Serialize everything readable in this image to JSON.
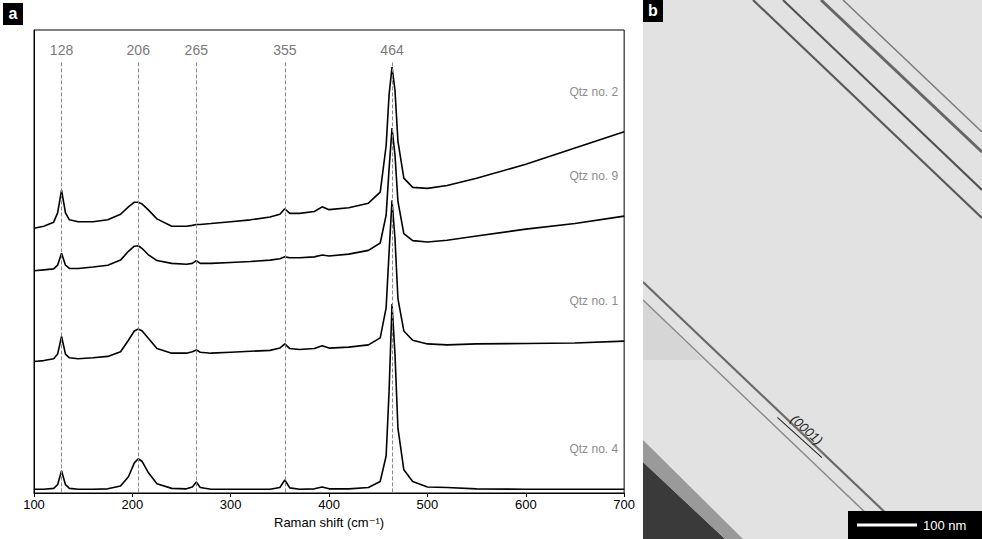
{
  "chart_data": {
    "type": "line",
    "panel": "a",
    "xlabel": "Raman shift (cm⁻¹)",
    "x": [
      100,
      110,
      120,
      124,
      128,
      132,
      136,
      145,
      160,
      175,
      188,
      196,
      202,
      206,
      210,
      216,
      225,
      240,
      255,
      261,
      265,
      269,
      280,
      300,
      320,
      340,
      350,
      355,
      360,
      370,
      385,
      393,
      400,
      420,
      440,
      452,
      458,
      461,
      464,
      467,
      470,
      476,
      485,
      500,
      520,
      550,
      600,
      650,
      700
    ],
    "series": [
      {
        "name": "Qtz no. 2",
        "color": "#000000",
        "values": [
          57.2,
          57.6,
          58.5,
          60.5,
          65.4,
          60.5,
          59,
          58.6,
          58.6,
          59,
          60.2,
          61.8,
          62.8,
          62.8,
          62.4,
          61.2,
          59.2,
          57.6,
          57.6,
          57.8,
          58,
          58,
          58.2,
          58.6,
          59,
          59.6,
          60.2,
          61.4,
          60.4,
          60.4,
          60.8,
          61.8,
          61.2,
          61.6,
          62.6,
          65,
          75,
          86,
          92,
          87,
          76,
          68,
          66,
          65.8,
          66.4,
          68,
          71,
          74.5,
          78
        ]
      },
      {
        "name": "Qtz no. 9",
        "color": "#000000",
        "values": [
          48,
          48.2,
          48.4,
          49.2,
          51.8,
          49.2,
          48.5,
          48.5,
          48.8,
          49.2,
          50.3,
          52.2,
          53.3,
          53.4,
          52.8,
          51.5,
          50.2,
          49.6,
          49.4,
          49.6,
          50.2,
          49.6,
          49.6,
          49.8,
          50,
          50.3,
          50.6,
          51,
          50.8,
          50.8,
          51,
          51.4,
          51.2,
          51.6,
          52.4,
          54,
          60,
          70,
          78.8,
          73,
          63,
          56,
          54.5,
          54.2,
          54.6,
          55.5,
          57,
          58.2,
          59.8
        ]
      },
      {
        "name": "Qtz no. 1",
        "color": "#000000",
        "values": [
          28.4,
          28.6,
          29,
          30,
          33.8,
          30,
          29.2,
          29,
          29.2,
          29.5,
          30.5,
          33,
          35,
          35.4,
          35,
          33.5,
          31.2,
          30.2,
          30.2,
          30.5,
          30.9,
          30.4,
          30.2,
          30.4,
          30.6,
          30.8,
          31.3,
          32.2,
          31.2,
          31,
          31.2,
          31.8,
          31.3,
          31.5,
          32,
          33.5,
          40,
          52,
          63.2,
          55,
          42,
          35,
          33,
          32.2,
          32,
          32.2,
          32.3,
          32.4,
          32.8
        ]
      },
      {
        "name": "Qtz no. 4",
        "color": "#000000",
        "values": [
          0.8,
          0.8,
          1.0,
          1.8,
          4.8,
          1.8,
          1.0,
          0.8,
          0.8,
          0.9,
          1.5,
          3.5,
          6.5,
          7.4,
          6.8,
          4.5,
          2.0,
          1.0,
          0.9,
          1.3,
          2.4,
          1.2,
          0.8,
          0.8,
          0.8,
          0.8,
          1.2,
          2.8,
          1.1,
          0.8,
          0.9,
          1.3,
          0.9,
          0.9,
          1.2,
          2.5,
          8,
          22,
          40.8,
          30,
          14,
          5,
          2.5,
          1.3,
          1.2,
          0.9,
          0.8,
          0.8,
          0.8
        ]
      }
    ],
    "xlim": [
      100,
      700
    ],
    "xticks": [
      100,
      200,
      300,
      400,
      500,
      600,
      700
    ],
    "ylim": [
      0,
      100
    ],
    "tick_labels": "x",
    "grid": false,
    "peak_lines": [
      128,
      206,
      265,
      355,
      464
    ]
  },
  "image_panel": {
    "panel": "b",
    "annotation": "(0001)",
    "scale_bar": "100 nm"
  }
}
